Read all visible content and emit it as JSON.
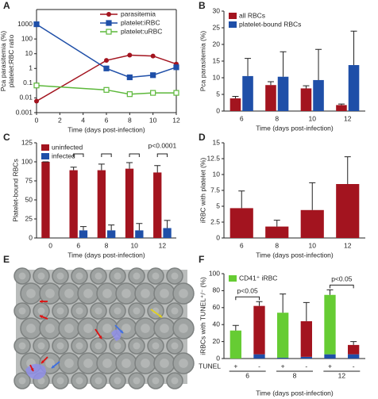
{
  "chart_data": [
    {
      "type": "line",
      "label": "A",
      "yscale": "log",
      "ylabel": "Pca parasitemia (%)\nplatelet:RBC ratio",
      "xlabel": "Time (days post-infection)",
      "x": [
        0,
        6,
        8,
        10,
        12
      ],
      "xlim": [
        0,
        12
      ],
      "xticks": [
        0,
        2,
        4,
        6,
        8,
        10,
        12
      ],
      "ylim": [
        0.001,
        10000
      ],
      "yticks": [
        0.001,
        0.01,
        0.1,
        1,
        10,
        100,
        1000
      ],
      "legend": "upper right",
      "series": [
        {
          "name": "parasitemia",
          "color": "#a3141f",
          "marker": "circle",
          "values": [
            0.006,
            3.5,
            8,
            7,
            2
          ]
        },
        {
          "name": "platelet:iRBC",
          "color": "#1f4fa8",
          "marker": "square",
          "values": [
            1000,
            1,
            0.25,
            0.35,
            1.2
          ]
        },
        {
          "name": "platelet:uRBC",
          "color": "#5cb83a",
          "marker": "open-square",
          "values": [
            0.07,
            0.035,
            0.018,
            0.022,
            0.022
          ]
        }
      ]
    },
    {
      "type": "bar",
      "label": "B",
      "ylabel": "Pca parasitemia (%)",
      "xlabel": "Time (days post-infection)",
      "categories": [
        "6",
        "8",
        "10",
        "12"
      ],
      "ylim": [
        0,
        30
      ],
      "yticks": [
        0,
        5,
        10,
        15,
        20,
        25,
        30
      ],
      "legend": "upper left",
      "series": [
        {
          "name": "all RBCs",
          "color": "#a3141f",
          "values": [
            3.8,
            7.8,
            6.8,
            1.8
          ],
          "errors": [
            0.6,
            1,
            0.8,
            0.3
          ]
        },
        {
          "name": "platelet-bound RBCs",
          "color": "#1f4fa8",
          "values": [
            10.5,
            10.3,
            9.3,
            13.8
          ],
          "errors": [
            5.3,
            7.5,
            9.2,
            10.2
          ]
        }
      ]
    },
    {
      "type": "bar",
      "label": "C",
      "ylabel": "Platelet-bound RBCs",
      "xlabel": "Time (days post-infection)",
      "categories": [
        "0",
        "6",
        "8",
        "10",
        "12"
      ],
      "ylim": [
        0,
        125
      ],
      "yticks": [
        0,
        25,
        50,
        75,
        100,
        125
      ],
      "legend": "upper left",
      "annotation": "p<0.0001",
      "series": [
        {
          "name": "uninfected",
          "color": "#a3141f",
          "values": [
            100,
            89,
            89,
            91,
            86
          ],
          "errors": [
            0,
            4,
            8,
            8,
            9
          ]
        },
        {
          "name": "infected",
          "color": "#1f4fa8",
          "values": [
            null,
            10,
            10,
            10,
            13
          ],
          "errors": [
            null,
            5,
            7,
            9,
            10
          ]
        }
      ]
    },
    {
      "type": "bar",
      "label": "D",
      "ylabel": "iRBC with platelet (%)",
      "xlabel": "Time (days post-infection)",
      "categories": [
        "6",
        "8",
        "10",
        "12"
      ],
      "ylim": [
        0,
        15
      ],
      "yticks": [
        0,
        {
          "value": 2.5,
          "label": "2.5"
        },
        5,
        {
          "value": 7.5,
          "label": "7.5"
        },
        10,
        {
          "value": 12.5,
          "label": "12.5"
        },
        15
      ],
      "series": [
        {
          "color": "#a3141f",
          "values": [
            4.7,
            1.8,
            4.4,
            8.5
          ],
          "errors": [
            2.7,
            1,
            4.3,
            4.3
          ]
        }
      ]
    },
    {
      "type": "image",
      "label": "E"
    },
    {
      "type": "stacked-bar",
      "label": "F",
      "ylabel": "iRBCs with TUNEL⁺/⁻ (%)",
      "xlabel": "Time (days post-infection)",
      "categories": [
        "+",
        "-",
        "+",
        "-",
        "+",
        "-"
      ],
      "groups": [
        "6",
        "8",
        "12"
      ],
      "row_label": "TUNEL",
      "ylim": [
        0,
        100
      ],
      "yticks": [
        0,
        20,
        40,
        60,
        80,
        100
      ],
      "legend": "upper left",
      "annotations": [
        "p<0.05",
        "p<0.05"
      ],
      "series": [
        {
          "color": "#1f4fa8",
          "values": [
            0,
            5,
            1,
            2,
            5,
            5
          ]
        },
        {
          "name": "CD41⁺ iRBC",
          "color": "#66cc33",
          "values": [
            33,
            null,
            53,
            null,
            70,
            null
          ],
          "errors": [
            6,
            null,
            22,
            null,
            6,
            null
          ]
        },
        {
          "color": "#a3141f",
          "values": [
            null,
            57,
            null,
            42,
            null,
            11
          ],
          "errors": [
            null,
            5,
            null,
            22,
            null,
            4
          ]
        }
      ]
    }
  ]
}
